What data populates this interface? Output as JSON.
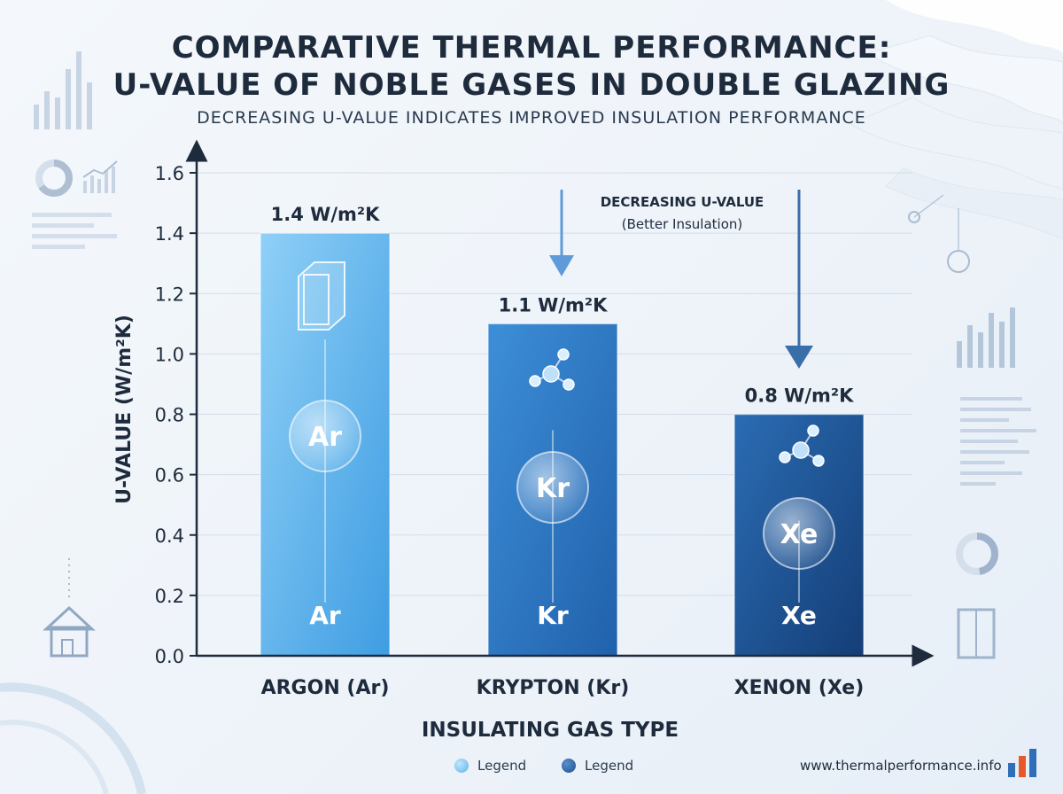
{
  "header": {
    "title_line1": "COMPARATIVE THERMAL PERFORMANCE:",
    "title_line2": "U-VALUE OF NOBLE GASES IN DOUBLE GLAZING",
    "subtitle": "DECREASING U-VALUE INDICATES IMPROVED INSULATION PERFORMANCE"
  },
  "annotation": {
    "line1": "DECREASING U-VALUE",
    "line2": "(Better Insulation)"
  },
  "chart_data": {
    "type": "bar",
    "categories": [
      "ARGON (Ar)",
      "KRYPTON (Kr)",
      "XENON (Xe)"
    ],
    "symbols": [
      "Ar",
      "Kr",
      "Xe"
    ],
    "values": [
      1.4,
      1.1,
      0.8
    ],
    "data_labels": [
      "1.4 W/m²K",
      "1.1 W/m²K",
      "0.8 W/m²K"
    ],
    "bar_colors": [
      "#5fb3ec",
      "#2f78c4",
      "#1d4f8f"
    ],
    "ylabel": "U-VALUE (W/m²K)",
    "xlabel": "INSULATING GAS TYPE",
    "ylim": [
      0,
      1.6
    ],
    "yticks": [
      "0.0",
      "0.2",
      "0.4",
      "0.6",
      "0.8",
      "1.0",
      "1.2",
      "1.4",
      "1.6"
    ],
    "grid": true
  },
  "legend": {
    "items": [
      {
        "label": "Legend",
        "color": "#5fb3ec"
      },
      {
        "label": "Legend",
        "color": "#1d4f8f"
      }
    ]
  },
  "footer": {
    "website": "www.thermalperformance.info"
  }
}
